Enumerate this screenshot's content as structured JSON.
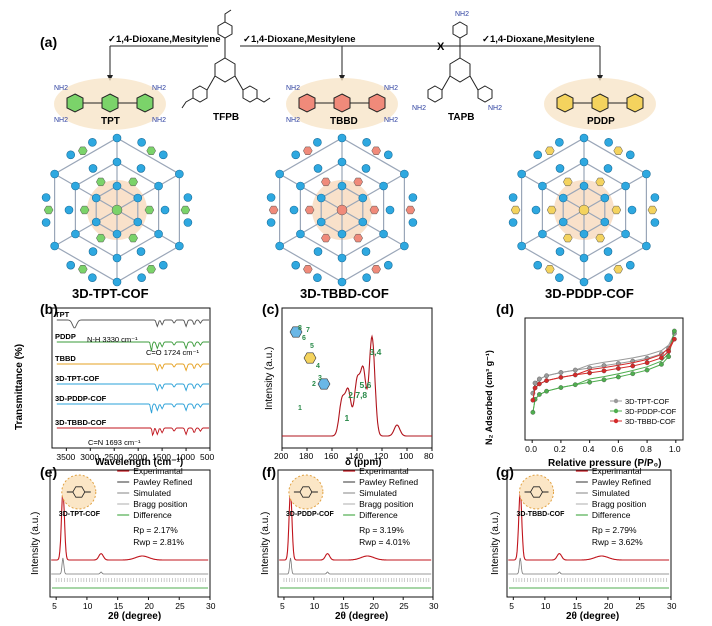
{
  "panel_a": {
    "letter": "(a)",
    "arrow_label_1": "✓1,4-Dioxane,Mesitylene",
    "arrow_label_2": "✓1,4-Dioxane,Mesitylene",
    "arrow_label_3": "✓1,4-Dioxane,Mesitylene",
    "cross_mark": "X",
    "molecules": {
      "tpt": "TPT",
      "tfpb": "TFPB",
      "tbbd": "TBBD",
      "tapb": "TAPB",
      "pddp": "PDDP"
    },
    "nh2": "NH2",
    "frameworks": [
      "3D-TPT-COF",
      "3D-TBBD-COF",
      "3D-PDDP-COF"
    ],
    "colors": {
      "tpt": "#7bd36a",
      "tbbd": "#f08a7a",
      "pddp": "#f4d35e",
      "node": "#2ea8e0"
    }
  },
  "chart_data": [
    {
      "panel": "(b)",
      "type": "line",
      "xlabel": "Wavelength (cm⁻¹)",
      "ylabel": "Transmittance (%)",
      "xlim": [
        3800,
        500
      ],
      "xticks": [
        3500,
        3000,
        2500,
        2000,
        1500,
        1000,
        500
      ],
      "series": [
        {
          "name": "TPT",
          "color": "#555555"
        },
        {
          "name": "PDDP",
          "color": "#3a9b3a"
        },
        {
          "name": "TBBD",
          "color": "#e6a020"
        },
        {
          "name": "3D-TPT-COF",
          "color": "#2aa0d8"
        },
        {
          "name": "3D-PDDP-COF",
          "color": "#2aa0d8"
        },
        {
          "name": "3D-TBBD-COF",
          "color": "#c0141c"
        }
      ],
      "annotations": [
        "N-H 3330 cm⁻¹",
        "C=O 1724 cm⁻¹",
        "C=N 1693 cm⁻¹"
      ]
    },
    {
      "panel": "(c)",
      "type": "line",
      "xlabel": "δ (ppm)",
      "ylabel": "Intensity (a.u.)",
      "xlim": [
        200,
        80
      ],
      "xticks": [
        200,
        180,
        160,
        140,
        120,
        100,
        80
      ],
      "series": [
        {
          "color": "#b0141c"
        }
      ],
      "annotations": [
        "3,4",
        "5,6",
        "2,7,8",
        "1",
        "8",
        "7",
        "6",
        "5",
        "4",
        "3",
        "2",
        "1"
      ],
      "peaks": [
        {
          "x": 152,
          "h": 0.32
        },
        {
          "x": 147,
          "h": 0.4
        },
        {
          "x": 140,
          "h": 0.48
        },
        {
          "x": 135,
          "h": 0.58
        },
        {
          "x": 128,
          "h": 0.9
        },
        {
          "x": 108,
          "h": 0.1
        }
      ]
    },
    {
      "panel": "(d)",
      "type": "scatter",
      "xlabel": "Relative pressure (P/P₀)",
      "ylabel": "N₂ Adsorbed (cm³ g⁻¹)",
      "xlim": [
        -0.05,
        1.05
      ],
      "xticks": [
        0.0,
        0.2,
        0.4,
        0.6,
        0.8,
        1.0
      ],
      "series": [
        {
          "name": "3D-TPT-COF",
          "color": "#9a9a9a",
          "ads": [
            [
              0.005,
              115
            ],
            [
              0.02,
              140
            ],
            [
              0.05,
              150
            ],
            [
              0.1,
              158
            ],
            [
              0.2,
              166
            ],
            [
              0.3,
              172
            ],
            [
              0.4,
              177
            ],
            [
              0.5,
              183
            ],
            [
              0.6,
              188
            ],
            [
              0.7,
              194
            ],
            [
              0.8,
              201
            ],
            [
              0.9,
              212
            ],
            [
              0.95,
              225
            ],
            [
              0.99,
              262
            ]
          ]
        },
        {
          "name": "3D-PDDP-COF",
          "color": "#4fae4f",
          "ads": [
            [
              0.005,
              68
            ],
            [
              0.02,
              100
            ],
            [
              0.05,
              112
            ],
            [
              0.1,
              120
            ],
            [
              0.2,
              129
            ],
            [
              0.3,
              136
            ],
            [
              0.4,
              142
            ],
            [
              0.5,
              148
            ],
            [
              0.6,
              155
            ],
            [
              0.7,
              163
            ],
            [
              0.8,
              172
            ],
            [
              0.9,
              186
            ],
            [
              0.95,
              205
            ],
            [
              0.99,
              268
            ]
          ]
        },
        {
          "name": "3D-TBBD-COF",
          "color": "#d42a2a",
          "ads": [
            [
              0.005,
              98
            ],
            [
              0.02,
              128
            ],
            [
              0.05,
              138
            ],
            [
              0.1,
              146
            ],
            [
              0.2,
              154
            ],
            [
              0.3,
              160
            ],
            [
              0.4,
              165
            ],
            [
              0.5,
              170
            ],
            [
              0.6,
              176
            ],
            [
              0.7,
              182
            ],
            [
              0.8,
              190
            ],
            [
              0.9,
              202
            ],
            [
              0.95,
              218
            ],
            [
              0.99,
              248
            ]
          ]
        }
      ]
    },
    {
      "panel": "(e)",
      "type": "line",
      "inset_label": "3D-TPT-COF",
      "xlabel": "2θ (degree)",
      "ylabel": "Intensity (a.u.)",
      "xlim": [
        4,
        30
      ],
      "xticks": [
        5,
        10,
        15,
        20,
        25,
        30
      ],
      "legend": [
        "Experimantal",
        "Pawley Refined",
        "Simulated",
        "Bragg position",
        "Difference"
      ],
      "rp": "Rp = 2.17%",
      "rwp": "Rwp = 2.81%"
    },
    {
      "panel": "(f)",
      "type": "line",
      "inset_label": "3D-PDDP-COF",
      "xlabel": "2θ (degree)",
      "ylabel": "Intensity (a.u.)",
      "xlim": [
        4,
        30
      ],
      "xticks": [
        5,
        10,
        15,
        20,
        25,
        30
      ],
      "legend": [
        "Experimantal",
        "Pawley Refined",
        "Simulated",
        "Bragg position",
        "Difference"
      ],
      "rp": "Rp = 3.19%",
      "rwp": "Rwp = 4.01%"
    },
    {
      "panel": "(g)",
      "type": "line",
      "inset_label": "3D-TBBD-COF",
      "xlabel": "2θ (degree)",
      "ylabel": "Intensity (a.u.)",
      "xlim": [
        4,
        30
      ],
      "xticks": [
        5,
        10,
        15,
        20,
        25,
        30
      ],
      "legend": [
        "Experimantal",
        "Pawley Refined",
        "Simulated",
        "Bragg position",
        "Difference"
      ],
      "rp": "Rp = 2.79%",
      "rwp": "Rwp = 3.62%"
    }
  ]
}
